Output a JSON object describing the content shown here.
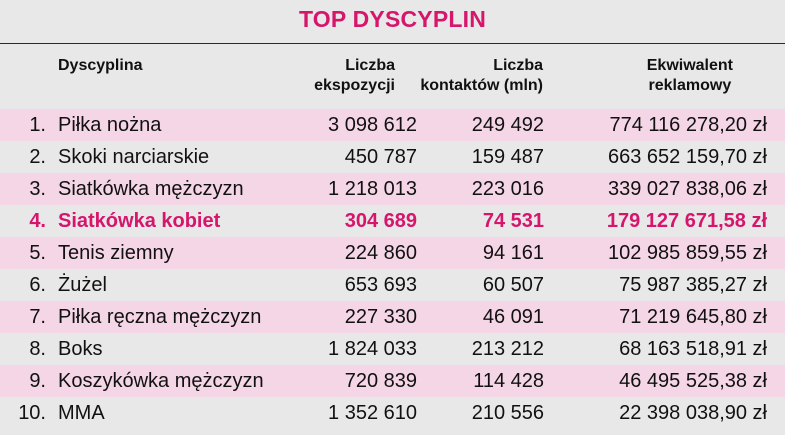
{
  "title": "TOP DYSCYPLIN",
  "colors": {
    "accent": "#d6156c",
    "row_stripe": "#f5d6e6",
    "background": "#e8e8e8"
  },
  "headers": {
    "name": "Dyscyplina",
    "exposures_line1": "Liczba",
    "exposures_line2": "ekspozycji",
    "contacts_line1": "Liczba",
    "contacts_line2": "kontaktów (mln)",
    "equivalent_line1": "Ekwiwalent",
    "equivalent_line2": "reklamowy"
  },
  "rows": [
    {
      "rank": "1.",
      "name": "Piłka nożna",
      "exposures": "3 098 612",
      "contacts": "249 492",
      "equivalent": "774 116 278,20 zł"
    },
    {
      "rank": "2.",
      "name": "Skoki narciarskie",
      "exposures": "450 787",
      "contacts": "159 487",
      "equivalent": "663 652 159,70 zł"
    },
    {
      "rank": "3.",
      "name": "Siatkówka mężczyzn",
      "exposures": "1 218 013",
      "contacts": "223 016",
      "equivalent": "339 027 838,06 zł"
    },
    {
      "rank": "4.",
      "name": "Siatkówka kobiet",
      "exposures": "304 689",
      "contacts": "74 531",
      "equivalent": "179 127 671,58 zł"
    },
    {
      "rank": "5.",
      "name": "Tenis ziemny",
      "exposures": "224 860",
      "contacts": "94 161",
      "equivalent": "102 985 859,55 zł"
    },
    {
      "rank": "6.",
      "name": "Żużel",
      "exposures": "653 693",
      "contacts": "60 507",
      "equivalent": "75 987 385,27 zł"
    },
    {
      "rank": "7.",
      "name": "Piłka ręczna mężczyzn",
      "exposures": "227 330",
      "contacts": "46 091",
      "equivalent": "71 219 645,80 zł"
    },
    {
      "rank": "8.",
      "name": "Boks",
      "exposures": "1 824 033",
      "contacts": "213 212",
      "equivalent": "68 163 518,91 zł"
    },
    {
      "rank": "9.",
      "name": "Koszykówka mężczyzn",
      "exposures": "720 839",
      "contacts": "114 428",
      "equivalent": "46 495 525,38 zł"
    },
    {
      "rank": "10.",
      "name": "MMA",
      "exposures": "1 352 610",
      "contacts": "210 556",
      "equivalent": "22 398 038,90 zł"
    }
  ]
}
